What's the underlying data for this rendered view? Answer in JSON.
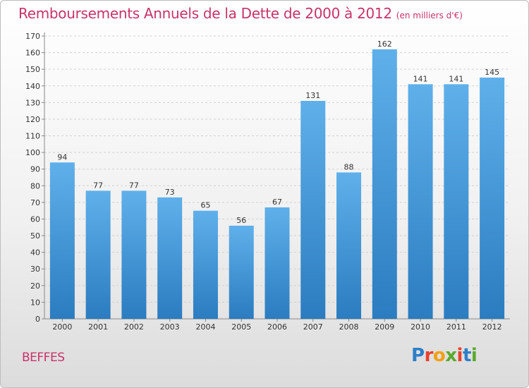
{
  "title": {
    "main": "Remboursements Annuels de la Dette de 2000 à 2012",
    "unit": "(en milliers d'€)"
  },
  "commune": "BEFFES",
  "logo": {
    "letters": [
      "P",
      "r",
      "o",
      "x",
      "i",
      "t",
      "i"
    ],
    "colors": [
      "#2e7fc8",
      "#e8412c",
      "#f2a012",
      "#5aaa2b",
      "#e8412c",
      "#2e7fc8",
      "#5aaa2b"
    ]
  },
  "colors": {
    "bar_top": "#5fb0ea",
    "bar_bottom": "#2b7cc0",
    "title": "#c8336a"
  },
  "chart_data": {
    "type": "bar",
    "categories": [
      "2000",
      "2001",
      "2002",
      "2003",
      "2004",
      "2005",
      "2006",
      "2007",
      "2008",
      "2009",
      "2010",
      "2011",
      "2012"
    ],
    "values": [
      94,
      77,
      77,
      73,
      65,
      56,
      67,
      131,
      88,
      162,
      141,
      141,
      145
    ],
    "ylim": [
      0,
      170
    ],
    "yticks": [
      0,
      10,
      20,
      30,
      40,
      50,
      60,
      70,
      80,
      90,
      100,
      110,
      120,
      130,
      140,
      150,
      160,
      170
    ],
    "grid": true,
    "data_labels": true
  }
}
